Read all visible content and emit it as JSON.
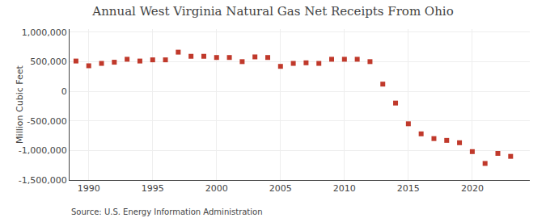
{
  "chart_data": {
    "type": "scatter",
    "title": "Annual West Virginia Natural Gas Net Receipts From Ohio",
    "ylabel": "Million Cubic Feet",
    "annotations": [
      "Source: U.S. Energy Information Administration"
    ],
    "x": [
      1989,
      1990,
      1991,
      1992,
      1993,
      1994,
      1995,
      1996,
      1997,
      1998,
      1999,
      2000,
      2001,
      2002,
      2003,
      2004,
      2005,
      2006,
      2007,
      2008,
      2009,
      2010,
      2011,
      2012,
      2013,
      2014,
      2015,
      2016,
      2017,
      2018,
      2019,
      2020,
      2021,
      2022,
      2023
    ],
    "values": [
      510000,
      430000,
      470000,
      490000,
      540000,
      510000,
      530000,
      530000,
      660000,
      590000,
      590000,
      570000,
      570000,
      500000,
      580000,
      570000,
      420000,
      470000,
      480000,
      470000,
      540000,
      540000,
      540000,
      500000,
      120000,
      -200000,
      -550000,
      -720000,
      -800000,
      -830000,
      -870000,
      -1020000,
      -1220000,
      -1050000,
      -1100000
    ],
    "color": "#c0392b",
    "marker": "square",
    "xlim": [
      1988.5,
      2024.5
    ],
    "xticks": [
      1990,
      1995,
      2000,
      2005,
      2010,
      2015,
      2020
    ],
    "ylim": [
      -1500000,
      1050000
    ],
    "yticks": [
      {
        "value": -1500000,
        "label": "-1,500,000"
      },
      {
        "value": -1000000,
        "label": "-1,000,000"
      },
      {
        "value": -500000,
        "label": "-500,000"
      },
      0,
      {
        "value": 500000,
        "label": "500,000"
      },
      {
        "value": 1000000,
        "label": "1,000,000"
      }
    ],
    "grid": true
  }
}
